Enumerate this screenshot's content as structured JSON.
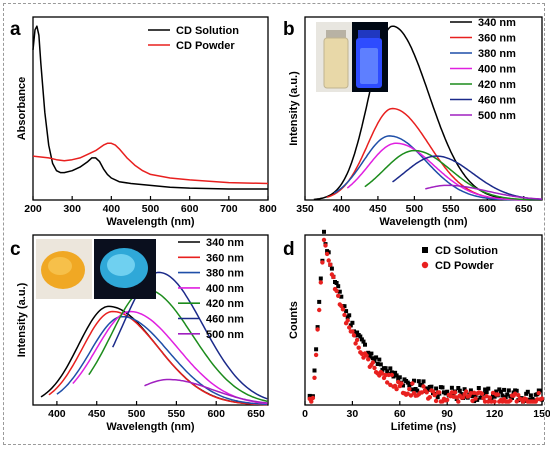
{
  "chart_data": [
    {
      "panel": "a",
      "type": "line",
      "xlabel": "Wavelength (nm)",
      "ylabel": "Absorbance",
      "xlim": [
        200,
        800
      ],
      "xticks": [
        200,
        300,
        400,
        500,
        600,
        700,
        800
      ],
      "ylim": [
        0,
        1
      ],
      "show_y_ticklabels": false,
      "legend_position": "top-right",
      "series": [
        {
          "name": "CD Solution",
          "color": "#000000",
          "x": [
            200,
            205,
            210,
            215,
            220,
            230,
            240,
            250,
            260,
            270,
            280,
            300,
            320,
            340,
            350,
            360,
            370,
            380,
            390,
            400,
            420,
            450,
            500,
            550,
            600,
            700,
            800
          ],
          "y": [
            0.82,
            0.93,
            0.95,
            0.9,
            0.75,
            0.48,
            0.3,
            0.2,
            0.16,
            0.15,
            0.15,
            0.16,
            0.18,
            0.21,
            0.23,
            0.23,
            0.21,
            0.17,
            0.14,
            0.12,
            0.1,
            0.09,
            0.08,
            0.07,
            0.065,
            0.06,
            0.06
          ]
        },
        {
          "name": "CD Powder",
          "color": "#e8201f",
          "x": [
            200,
            220,
            240,
            260,
            280,
            300,
            320,
            340,
            360,
            380,
            390,
            400,
            410,
            420,
            440,
            460,
            480,
            500,
            550,
            600,
            700,
            800
          ],
          "y": [
            0.24,
            0.235,
            0.23,
            0.22,
            0.215,
            0.22,
            0.23,
            0.25,
            0.27,
            0.3,
            0.31,
            0.31,
            0.3,
            0.28,
            0.23,
            0.19,
            0.16,
            0.14,
            0.12,
            0.11,
            0.095,
            0.09
          ]
        }
      ]
    },
    {
      "panel": "b",
      "type": "line",
      "xlabel": "Wavelength (nm)",
      "ylabel": "Intensity (a.u.)",
      "xlim": [
        350,
        675
      ],
      "xticks": [
        350,
        400,
        450,
        500,
        550,
        600,
        650
      ],
      "ylim": [
        0,
        1
      ],
      "show_y_ticklabels": false,
      "legend_position": "top-right",
      "inset": "vial",
      "series": [
        {
          "name": "340 nm",
          "color": "#000000",
          "center": 470,
          "sl": 32,
          "sr": 50,
          "amp": 0.95,
          "start": 362,
          "end": 675
        },
        {
          "name": "360 nm",
          "color": "#e8201f",
          "center": 470,
          "sl": 34,
          "sr": 50,
          "amp": 0.5,
          "start": 380,
          "end": 675
        },
        {
          "name": "380 nm",
          "color": "#1f4fa8",
          "center": 466,
          "sl": 36,
          "sr": 50,
          "amp": 0.35,
          "start": 390,
          "end": 675
        },
        {
          "name": "400 nm",
          "color": "#e020e0",
          "center": 475,
          "sl": 38,
          "sr": 52,
          "amp": 0.31,
          "start": 408,
          "end": 675
        },
        {
          "name": "420 nm",
          "color": "#1c8c1c",
          "center": 500,
          "sl": 42,
          "sr": 50,
          "amp": 0.27,
          "start": 432,
          "end": 675
        },
        {
          "name": "460 nm",
          "color": "#1b2a8a",
          "center": 530,
          "sl": 45,
          "sr": 50,
          "amp": 0.24,
          "start": 470,
          "end": 675
        },
        {
          "name": "500 nm",
          "color": "#a020c0",
          "center": 545,
          "sl": 40,
          "sr": 55,
          "amp": 0.08,
          "start": 515,
          "end": 675
        }
      ]
    },
    {
      "panel": "c",
      "type": "line",
      "xlabel": "Wavelength (nm)",
      "ylabel": "Intensity (a.u.)",
      "xlim": [
        370,
        665
      ],
      "xticks": [
        400,
        450,
        500,
        550,
        600,
        650
      ],
      "ylim": [
        0,
        1
      ],
      "show_y_ticklabels": false,
      "legend_position": "top-right",
      "inset": "powder",
      "series": [
        {
          "name": "340 nm",
          "color": "#000000",
          "center": 465,
          "sl": 38,
          "sr": 60,
          "amp": 0.58,
          "start": 380,
          "end": 665
        },
        {
          "name": "360 nm",
          "color": "#e8201f",
          "center": 470,
          "sl": 38,
          "sr": 58,
          "amp": 0.55,
          "start": 390,
          "end": 665
        },
        {
          "name": "380 nm",
          "color": "#1f4fa8",
          "center": 482,
          "sl": 40,
          "sr": 58,
          "amp": 0.52,
          "start": 400,
          "end": 665
        },
        {
          "name": "400 nm",
          "color": "#e020e0",
          "center": 492,
          "sl": 42,
          "sr": 60,
          "amp": 0.55,
          "start": 420,
          "end": 665
        },
        {
          "name": "420 nm",
          "color": "#1c8c1c",
          "center": 512,
          "sl": 44,
          "sr": 58,
          "amp": 0.68,
          "start": 440,
          "end": 665
        },
        {
          "name": "460 nm",
          "color": "#1b2a8a",
          "center": 528,
          "sl": 45,
          "sr": 55,
          "amp": 0.78,
          "start": 470,
          "end": 665
        },
        {
          "name": "500 nm",
          "color": "#a020c0",
          "center": 540,
          "sl": 40,
          "sr": 55,
          "amp": 0.15,
          "start": 510,
          "end": 665
        }
      ]
    },
    {
      "panel": "d",
      "type": "scatter",
      "xlabel": "Lifetime (ns)",
      "ylabel": "Counts",
      "xlim": [
        0,
        150
      ],
      "xticks": [
        0,
        30,
        60,
        90,
        120,
        150
      ],
      "ylim": [
        0,
        1
      ],
      "show_y_ticklabels": false,
      "legend_position": "top-right",
      "series": [
        {
          "name": "CD Solution",
          "color": "#000000",
          "marker": "square",
          "peak_x": 12,
          "tau": 22
        },
        {
          "name": "CD Powder",
          "color": "#e8201f",
          "marker": "circle",
          "peak_x": 12,
          "tau": 20
        }
      ]
    }
  ]
}
